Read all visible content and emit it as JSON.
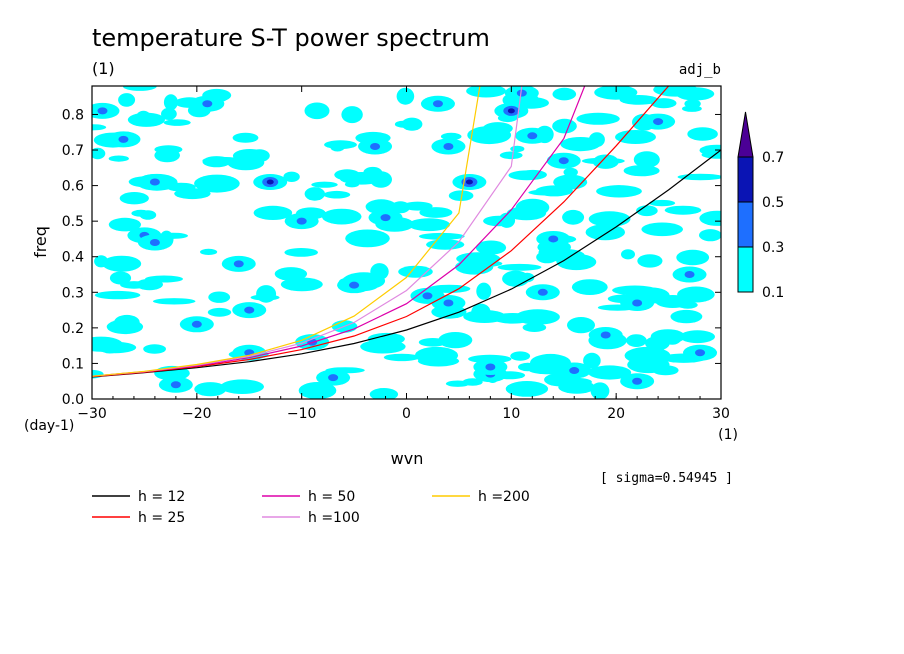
{
  "chart_data": {
    "type": "heatmap",
    "title": "temperature S-T power spectrum",
    "title_unit": "(1)",
    "dataset_label": "adj_b",
    "xlabel": "wvn",
    "ylabel": "freq",
    "x_unit": "(1)",
    "y_unit": "(day-1)",
    "xlim": [
      -30,
      30
    ],
    "ylim": [
      0,
      0.88
    ],
    "x_ticks": [
      "-30",
      "-20",
      "-10",
      "0",
      "10",
      "20",
      "30"
    ],
    "y_ticks": [
      "0.0",
      "0.1",
      "0.2",
      "0.3",
      "0.4",
      "0.5",
      "0.6",
      "0.7",
      "0.8"
    ],
    "sigma_note": "[ sigma=0.54945 ]",
    "colorbar": {
      "levels": [
        "0.1",
        "0.3",
        "0.5",
        "0.7"
      ],
      "colors": [
        "#00ffff",
        "#1e6fff",
        "#0a14b4",
        "#4b0096"
      ]
    },
    "power_blobs": [
      {
        "x": -9,
        "y": 0.16,
        "level": 2
      },
      {
        "x": -7,
        "y": 0.06,
        "level": 2
      },
      {
        "x": 2,
        "y": 0.29,
        "level": 2
      },
      {
        "x": 4,
        "y": 0.27,
        "level": 2
      },
      {
        "x": 6,
        "y": 0.61,
        "level": 3
      },
      {
        "x": 4,
        "y": 0.71,
        "level": 2
      },
      {
        "x": 10,
        "y": 0.81,
        "level": 3
      },
      {
        "x": 11,
        "y": 0.86,
        "level": 2
      },
      {
        "x": -13,
        "y": 0.61,
        "level": 3
      },
      {
        "x": -24,
        "y": 0.61,
        "level": 2
      },
      {
        "x": -3,
        "y": 0.71,
        "level": 2
      },
      {
        "x": -29,
        "y": 0.81,
        "level": 2
      },
      {
        "x": 14,
        "y": 0.45,
        "level": 2
      },
      {
        "x": 15,
        "y": 0.67,
        "level": 2
      },
      {
        "x": 22,
        "y": 0.05,
        "level": 2
      },
      {
        "x": -20,
        "y": 0.21,
        "level": 2
      },
      {
        "x": 19,
        "y": 0.18,
        "level": 2
      },
      {
        "x": -25,
        "y": 0.46,
        "level": 2
      },
      {
        "x": 8,
        "y": 0.07,
        "level": 2
      },
      {
        "x": -15,
        "y": 0.13,
        "level": 2
      },
      {
        "x": -24,
        "y": 0.44,
        "level": 1
      },
      {
        "x": -15,
        "y": 0.25,
        "level": 1
      },
      {
        "x": 8,
        "y": 0.09,
        "level": 1
      },
      {
        "x": 3,
        "y": 0.83,
        "level": 1
      },
      {
        "x": 16,
        "y": 0.08,
        "level": 1
      },
      {
        "x": 27,
        "y": 0.35,
        "level": 1
      },
      {
        "x": -5,
        "y": 0.32,
        "level": 1
      },
      {
        "x": 12,
        "y": 0.74,
        "level": 1
      },
      {
        "x": -27,
        "y": 0.73,
        "level": 1
      },
      {
        "x": 24,
        "y": 0.78,
        "level": 1
      },
      {
        "x": -19,
        "y": 0.83,
        "level": 1
      },
      {
        "x": 28,
        "y": 0.13,
        "level": 1
      },
      {
        "x": -2,
        "y": 0.51,
        "level": 1
      },
      {
        "x": 13,
        "y": 0.3,
        "level": 1
      },
      {
        "x": -10,
        "y": 0.5,
        "level": 1
      },
      {
        "x": -16,
        "y": 0.38,
        "level": 1
      },
      {
        "x": 22,
        "y": 0.27,
        "level": 1
      },
      {
        "x": -22,
        "y": 0.04,
        "level": 1
      }
    ],
    "series": [
      {
        "name": "h = 12",
        "color": "#000000",
        "h": 12,
        "x": [
          -30,
          -25,
          -20,
          -15,
          -10,
          -5,
          0,
          5,
          10,
          15,
          20,
          25,
          30
        ],
        "y": [
          0.062,
          0.074,
          0.088,
          0.105,
          0.127,
          0.156,
          0.194,
          0.244,
          0.309,
          0.389,
          0.484,
          0.588,
          0.7
        ]
      },
      {
        "name": "h = 25",
        "color": "#ff0000",
        "h": 25,
        "x": [
          -30,
          -25,
          -20,
          -15,
          -10,
          -5,
          0,
          5,
          10,
          15,
          20,
          25
        ],
        "y": [
          0.063,
          0.075,
          0.091,
          0.111,
          0.139,
          0.177,
          0.232,
          0.31,
          0.417,
          0.554,
          0.712,
          0.88
        ]
      },
      {
        "name": "h = 50",
        "color": "#dd00aa",
        "h": 50,
        "x": [
          -30,
          -25,
          -20,
          -15,
          -10,
          -5,
          0,
          5,
          10,
          15,
          17
        ],
        "y": [
          0.064,
          0.077,
          0.093,
          0.116,
          0.149,
          0.197,
          0.268,
          0.377,
          0.532,
          0.732,
          0.88
        ]
      },
      {
        "name": "h =100",
        "color": "#e08ae0",
        "h": 100,
        "x": [
          -30,
          -25,
          -20,
          -15,
          -10,
          -5,
          0,
          5,
          10,
          11
        ],
        "y": [
          0.064,
          0.077,
          0.095,
          0.12,
          0.157,
          0.215,
          0.305,
          0.442,
          0.654,
          0.88
        ]
      },
      {
        "name": "h =200",
        "color": "#ffcc00",
        "h": 200,
        "x": [
          -30,
          -25,
          -20,
          -15,
          -10,
          -5,
          0,
          5,
          7
        ],
        "y": [
          0.064,
          0.078,
          0.097,
          0.123,
          0.165,
          0.233,
          0.342,
          0.523,
          0.88
        ]
      }
    ]
  }
}
